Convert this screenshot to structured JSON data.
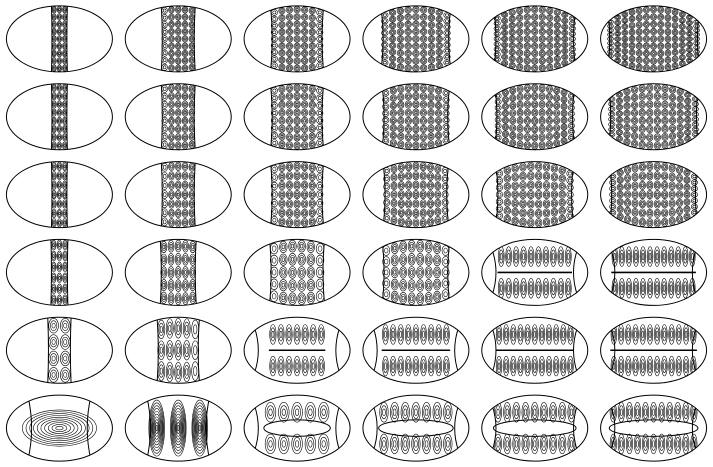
{
  "figure": {
    "rows": 6,
    "cols": 6,
    "ink_color": "#000000",
    "background_color": "#ffffff",
    "cells": [
      [
        {
          "mode": "bouncing-ball",
          "band_width": 0.15,
          "rows": 9,
          "cols": 3
        },
        {
          "mode": "bouncing-ball",
          "band_width": 0.32,
          "rows": 9,
          "cols": 5
        },
        {
          "mode": "bouncing-ball",
          "band_width": 0.5,
          "rows": 9,
          "cols": 7
        },
        {
          "mode": "bouncing-ball",
          "band_width": 0.66,
          "rows": 9,
          "cols": 9
        },
        {
          "mode": "bouncing-ball",
          "band_width": 0.78,
          "rows": 9,
          "cols": 11
        },
        {
          "mode": "bouncing-ball",
          "band_width": 0.88,
          "rows": 9,
          "cols": 13
        }
      ],
      [
        {
          "mode": "bouncing-ball",
          "band_width": 0.15,
          "rows": 8,
          "cols": 3
        },
        {
          "mode": "bouncing-ball",
          "band_width": 0.32,
          "rows": 8,
          "cols": 5
        },
        {
          "mode": "bouncing-ball",
          "band_width": 0.5,
          "rows": 8,
          "cols": 7
        },
        {
          "mode": "bouncing-ball",
          "band_width": 0.64,
          "rows": 8,
          "cols": 9
        },
        {
          "mode": "bouncing-ball",
          "band_width": 0.76,
          "rows": 8,
          "cols": 11
        },
        {
          "mode": "bouncing-ball",
          "band_width": 0.86,
          "rows": 8,
          "cols": 12
        }
      ],
      [
        {
          "mode": "bouncing-ball",
          "band_width": 0.15,
          "rows": 7,
          "cols": 3
        },
        {
          "mode": "bouncing-ball",
          "band_width": 0.32,
          "rows": 7,
          "cols": 5
        },
        {
          "mode": "bouncing-ball",
          "band_width": 0.5,
          "rows": 7,
          "cols": 7
        },
        {
          "mode": "bouncing-ball",
          "band_width": 0.62,
          "rows": 7,
          "cols": 9
        },
        {
          "mode": "bouncing-ball",
          "band_width": 0.74,
          "rows": 7,
          "cols": 10
        },
        {
          "mode": "bouncing-ball",
          "band_width": 0.84,
          "rows": 7,
          "cols": 12
        }
      ],
      [
        {
          "mode": "bouncing-ball",
          "band_width": 0.16,
          "rows": 6,
          "cols": 3
        },
        {
          "mode": "bouncing-ball",
          "band_width": 0.34,
          "rows": 5,
          "cols": 5
        },
        {
          "mode": "bouncing-ball",
          "band_width": 0.52,
          "rows": 5,
          "cols": 6
        },
        {
          "mode": "bouncing-ball",
          "band_width": 0.64,
          "rows": 5,
          "cols": 8
        },
        {
          "mode": "whispering",
          "band_width": 0.74,
          "rows": 5,
          "cols": 10
        },
        {
          "mode": "whispering",
          "band_width": 0.84,
          "rows": 3,
          "cols": 12
        }
      ],
      [
        {
          "mode": "bouncing-ball",
          "band_width": 0.22,
          "rows": 4,
          "cols": 2
        },
        {
          "mode": "bouncing-ball",
          "band_width": 0.4,
          "rows": 3,
          "cols": 5
        },
        {
          "mode": "whispering",
          "band_width": 0.56,
          "rows": 3,
          "cols": 7
        },
        {
          "mode": "whispering",
          "band_width": 0.68,
          "rows": 3,
          "cols": 9
        },
        {
          "mode": "whispering",
          "band_width": 0.78,
          "rows": 3,
          "cols": 11
        },
        {
          "mode": "whispering",
          "band_width": 0.86,
          "rows": 3,
          "cols": 12
        }
      ],
      [
        {
          "mode": "ground",
          "band_width": 0.5,
          "rows": 1,
          "cols": 1
        },
        {
          "mode": "ground",
          "band_width": 0.58,
          "rows": 1,
          "cols": 3
        },
        {
          "mode": "whispering",
          "band_width": 0.66,
          "rows": 2,
          "cols": 5
        },
        {
          "mode": "whispering",
          "band_width": 0.74,
          "rows": 2,
          "cols": 7
        },
        {
          "mode": "whispering",
          "band_width": 0.82,
          "rows": 2,
          "cols": 9
        },
        {
          "mode": "whispering",
          "band_width": 0.88,
          "rows": 2,
          "cols": 11
        }
      ]
    ]
  }
}
